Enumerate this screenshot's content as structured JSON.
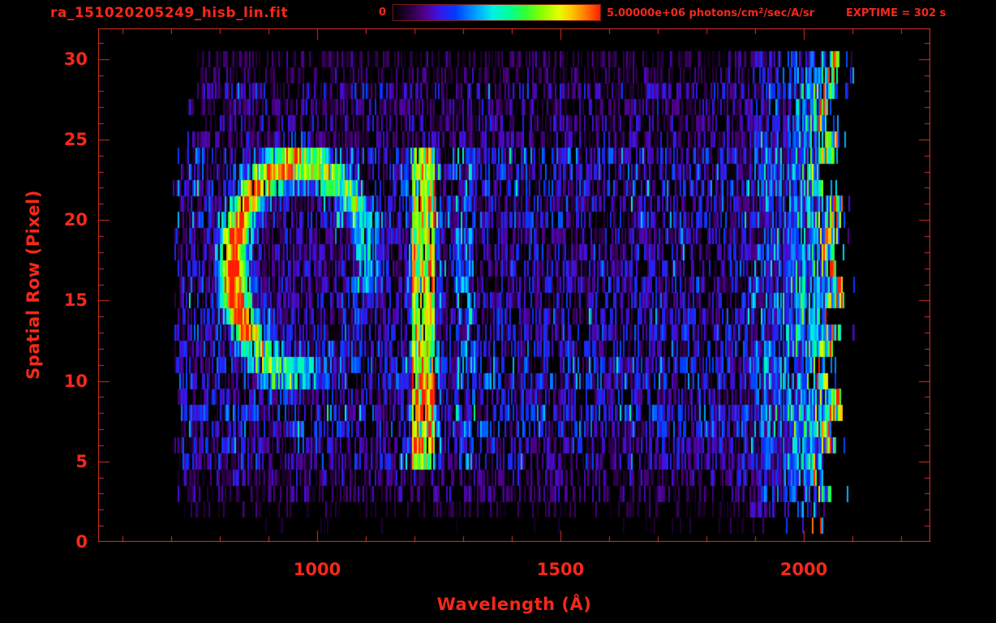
{
  "window": {
    "title": "ra_151020205249_hisb_lin.fit",
    "exptime_label": "EXPTIME = 302 s"
  },
  "colorbar": {
    "min_label": "0",
    "max_label_value": "5.00000e+06",
    "max_label_units_prefix": " photons/cm",
    "max_label_units_sup": "2",
    "max_label_units_suffix": "/sec/A/sr"
  },
  "chart_data": {
    "type": "heatmap",
    "title": "ra_151020205249_hisb_lin.fit",
    "xlabel": "Wavelength (Å)",
    "ylabel": "Spatial Row (Pixel)",
    "xlim": [
      550,
      2260
    ],
    "ylim": [
      0,
      31.9
    ],
    "xticks": [
      1000,
      1500,
      2000
    ],
    "xtick_minor_step": 100,
    "yticks": [
      0,
      5,
      10,
      15,
      20,
      25,
      30
    ],
    "ytick_minor_step": 1,
    "colorbar": {
      "min": 0,
      "max": 5000000,
      "units": "photons/cm^2/sec/A/sr",
      "colormap": "idl-rainbow"
    },
    "exposure_time_s": 302,
    "data_extent": {
      "wavelength_A": [
        700,
        2085
      ],
      "rows": [
        1,
        30
      ]
    },
    "features": [
      {
        "name": "ring",
        "type": "elliptical-ring",
        "description": "bright emission ring, brightest yellow-orange on left limb, open at lower right",
        "center_wavelength_A": 965,
        "center_row": 17,
        "radius_wavelength_A": 150,
        "radius_rows": 7,
        "peak_fraction_of_max": 0.8
      },
      {
        "name": "lyman-alpha-emission-line",
        "type": "vertical-line",
        "description": "strong green emission line spanning the illuminated slit rows",
        "wavelength_A": 1216,
        "width_A": 46,
        "rows": [
          5,
          24
        ],
        "peak_fraction_of_max": 0.75
      },
      {
        "name": "oi-1304-emission-line",
        "type": "vertical-line",
        "description": "faint cyan companion line",
        "wavelength_A": 1304,
        "width_A": 40,
        "rows": [
          5,
          24
        ],
        "peak_fraction_of_max": 0.35
      },
      {
        "name": "long-wavelength-continuum",
        "type": "ramp",
        "description": "noise brightens blue->green toward long-wavelength edge with yellow/red strips at ragged cutoff",
        "start_wavelength_A": 1845,
        "end_wavelength_A": 2085,
        "peak_fraction_of_max": 0.65
      }
    ],
    "noise": {
      "style": "thin vertical strips per spatial row",
      "background_fraction_range": [
        0,
        0.38
      ],
      "full_rows": [
        5,
        24
      ],
      "dim_rows": [
        25,
        30
      ],
      "sparse_rows": [
        1,
        4
      ]
    },
    "colormap_stops": [
      [
        0.0,
        0,
        0,
        0
      ],
      [
        0.07,
        35,
        0,
        55
      ],
      [
        0.15,
        80,
        0,
        140
      ],
      [
        0.22,
        60,
        20,
        230
      ],
      [
        0.3,
        0,
        60,
        255
      ],
      [
        0.4,
        0,
        160,
        255
      ],
      [
        0.48,
        0,
        240,
        230
      ],
      [
        0.56,
        0,
        255,
        150
      ],
      [
        0.64,
        50,
        255,
        50
      ],
      [
        0.72,
        140,
        255,
        0
      ],
      [
        0.8,
        230,
        255,
        0
      ],
      [
        0.86,
        255,
        200,
        0
      ],
      [
        0.93,
        255,
        120,
        0
      ],
      [
        1.0,
        255,
        30,
        0
      ]
    ],
    "render_seed": 20151020
  },
  "colors": {
    "label_red": "#f5281a",
    "axis_red": "#de3120",
    "colorbar_border": "#7a1b10",
    "background": "#000000"
  }
}
